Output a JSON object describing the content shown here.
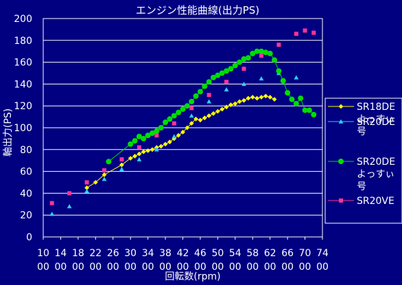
{
  "chart_data": {
    "type": "scatter",
    "title": "エンジン性能曲線(出力PS)",
    "xlabel": "回転数(rpm)",
    "ylabel": "軸出力(PS)",
    "xlim": [
      1000,
      7400
    ],
    "ylim": [
      0,
      200
    ],
    "x_ticks": [
      1000,
      1400,
      1800,
      2200,
      2600,
      3000,
      3400,
      3800,
      4200,
      4600,
      5000,
      5400,
      5800,
      6200,
      6600,
      7000,
      7400
    ],
    "x_tick_labels": [
      "10 00",
      "14 00",
      "18 00",
      "22 00",
      "26 00",
      "30 00",
      "34 00",
      "38 00",
      "42 00",
      "46 00",
      "50 00",
      "54 00",
      "58 00",
      "62 00",
      "66 00",
      "70 00",
      "74 00"
    ],
    "y_ticks": [
      0,
      20,
      40,
      60,
      80,
      100,
      120,
      140,
      160,
      180,
      200
    ],
    "grid": true,
    "legend_position": "right",
    "colors": {
      "background": "#000080",
      "plot_area": "#000080",
      "grid": "#ffffff",
      "text": "#ffffff"
    },
    "series": [
      {
        "name": "SR18DE よっすぃ号",
        "legend_lines": [
          "SR18DE",
          "よっすぃ",
          "号"
        ],
        "marker": "diamond",
        "line": true,
        "color": "#ffff00",
        "x": [
          2000,
          2200,
          2400,
          2800,
          3000,
          3100,
          3200,
          3300,
          3400,
          3500,
          3600,
          3700,
          3800,
          3900,
          4000,
          4100,
          4200,
          4300,
          4400,
          4500,
          4600,
          4700,
          4800,
          4900,
          5000,
          5100,
          5200,
          5300,
          5400,
          5500,
          5600,
          5700,
          5800,
          5900,
          6000,
          6100,
          6200,
          6300
        ],
        "y": [
          45,
          50,
          57,
          66,
          72,
          74,
          76,
          78,
          79,
          80,
          82,
          83,
          85,
          87,
          90,
          93,
          96,
          100,
          104,
          108,
          107,
          109,
          111,
          113,
          115,
          117,
          119,
          121,
          122,
          124,
          125,
          127,
          128,
          127,
          128,
          129,
          128,
          126
        ]
      },
      {
        "name": "SR20DE",
        "marker": "triangle",
        "line": false,
        "color": "#33ccff",
        "x": [
          1200,
          1600,
          2000,
          2400,
          2800,
          3200,
          3600,
          4000,
          4400,
          4800,
          5200,
          5600,
          6000,
          6400,
          6800
        ],
        "y": [
          21,
          28,
          42,
          53,
          62,
          71,
          80,
          92,
          111,
          124,
          135,
          140,
          145,
          150,
          146
        ]
      },
      {
        "name": "SR20DE よっすぃ号",
        "legend_lines": [
          "SR20DE",
          "よっすぃ",
          "号"
        ],
        "marker": "circle",
        "line": true,
        "color": "#00dd00",
        "x": [
          2500,
          3000,
          3100,
          3200,
          3300,
          3400,
          3500,
          3600,
          3700,
          3800,
          3900,
          4000,
          4100,
          4200,
          4300,
          4400,
          4500,
          4600,
          4700,
          4800,
          4900,
          5000,
          5100,
          5200,
          5300,
          5400,
          5500,
          5600,
          5700,
          5800,
          5900,
          6000,
          6100,
          6200,
          6300,
          6400,
          6500,
          6600,
          6700,
          6800,
          6900,
          7000,
          7100,
          7200
        ],
        "y": [
          69,
          85,
          88,
          92,
          90,
          93,
          95,
          97,
          100,
          105,
          108,
          111,
          114,
          117,
          120,
          124,
          129,
          133,
          138,
          142,
          146,
          148,
          150,
          152,
          154,
          157,
          160,
          163,
          164,
          168,
          170,
          170,
          169,
          168,
          162,
          152,
          143,
          132,
          126,
          122,
          127,
          116,
          116,
          112
        ]
      },
      {
        "name": "SR20VE",
        "marker": "square",
        "line": false,
        "color": "#ff3399",
        "x": [
          1200,
          1600,
          2000,
          2400,
          2800,
          3200,
          3600,
          4000,
          4400,
          4800,
          5200,
          5600,
          6000,
          6400,
          6800,
          7000,
          7200
        ],
        "y": [
          31,
          40,
          50,
          61,
          71,
          82,
          93,
          104,
          118,
          130,
          142,
          154,
          166,
          176,
          186,
          189,
          187
        ]
      }
    ]
  }
}
